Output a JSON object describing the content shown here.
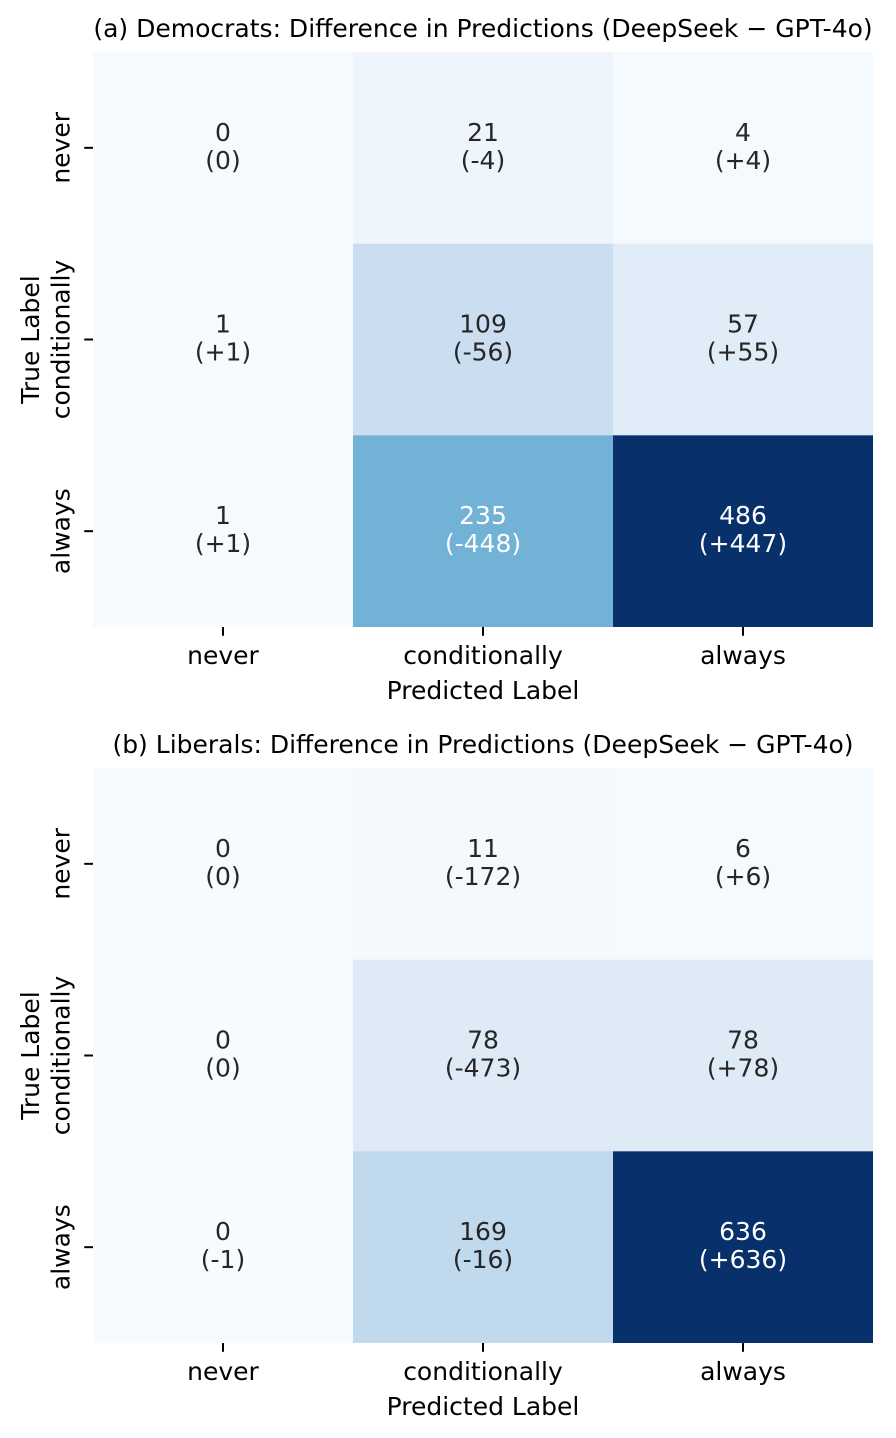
{
  "colormap": [
    "#f7fbff",
    "#deebf7",
    "#c6dbef",
    "#9ecae1",
    "#6baed6",
    "#4292c6",
    "#2171b5",
    "#08519c",
    "#08306b"
  ],
  "annotation_colors": {
    "dark": "#262626",
    "light": "#ffffff"
  },
  "chart_data": [
    {
      "type": "heatmap",
      "title": "(a) Democrats: Difference in Predictions (DeepSeek − GPT-4o)",
      "xlabel": "Predicted Label",
      "ylabel": "True Label",
      "x_categories": [
        "never",
        "conditionally",
        "always"
      ],
      "y_categories": [
        "never",
        "conditionally",
        "always"
      ],
      "values": [
        [
          0,
          21,
          4
        ],
        [
          1,
          109,
          57
        ],
        [
          1,
          235,
          486
        ]
      ],
      "differences": [
        [
          "(0)",
          "(-4)",
          "(+4)"
        ],
        [
          "(+1)",
          "(-56)",
          "(+55)"
        ],
        [
          "(+1)",
          "(-448)",
          "(+447)"
        ]
      ]
    },
    {
      "type": "heatmap",
      "title": "(b) Liberals: Difference in Predictions (DeepSeek − GPT-4o)",
      "xlabel": "Predicted Label",
      "ylabel": "True Label",
      "x_categories": [
        "never",
        "conditionally",
        "always"
      ],
      "y_categories": [
        "never",
        "conditionally",
        "always"
      ],
      "values": [
        [
          0,
          11,
          6
        ],
        [
          0,
          78,
          78
        ],
        [
          0,
          169,
          636
        ]
      ],
      "differences": [
        [
          "(0)",
          "(-172)",
          "(+6)"
        ],
        [
          "(0)",
          "(-473)",
          "(+78)"
        ],
        [
          "(-1)",
          "(-16)",
          "(+636)"
        ]
      ]
    }
  ]
}
